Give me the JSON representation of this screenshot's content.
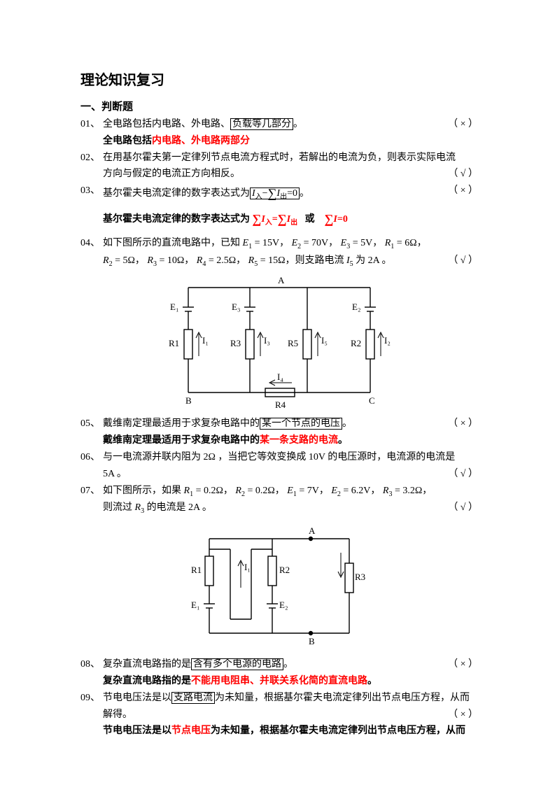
{
  "title": "理论知识复习",
  "section": "一、判断题",
  "colors": {
    "text": "#000000",
    "highlight": "#ff0000",
    "bg": "#ffffff"
  },
  "q01": {
    "num": "01、",
    "pre": "全电路包括内电路、外电路、",
    "box": "负载等几部分",
    "post": "。",
    "ans": "（ × ）",
    "corr_pre": "全电路包括",
    "corr_hi": "内电路、外电路两部分"
  },
  "q02": {
    "num": "02、",
    "l1": "在用基尔霍夫第一定律列节点电流方程式时，若解出的电流为负，则表示实际电流",
    "l2": "方向与假定的电流正方向相反。",
    "ans": "（ √ ）"
  },
  "q03": {
    "num": "03、",
    "pre": "基尔霍夫电流定律的数字表达式为",
    "box_html": "<span class='it'>I</span><span class='sub'>入</span>−<span class='sigma'>∑</span><span class='it'>I</span><span class='sub'>出</span>=0",
    "post": "。",
    "ans": "（ × ）",
    "ft": "基尔霍夫电流定律的数字表达式为",
    "fa": "<span class='sigma red'>∑</span><span class='it red'>I</span><span class='sub red'>入</span><span class='red'>=</span><span class='sigma red'>∑</span><span class='it red'>I</span><span class='sub red'>出</span>",
    "or": "或",
    "fb": "<span class='sigma red'>∑</span><span class='it red'>I</span><span class='red'>=0</span>"
  },
  "q04": {
    "num": "04、",
    "l1": "如下图所示的直流电路中，已知 <span class='it'>E</span><span class='sub'>1</span> = 15V， <span class='it'>E</span><span class='sub'>2</span> = 70V， <span class='it'>E</span><span class='sub'>3</span> = 5V， <span class='it'>R</span><span class='sub'>1</span> = 6Ω，",
    "l2": "<span class='it'>R</span><span class='sub'>2</span> = 5Ω， <span class='it'>R</span><span class='sub'>3</span> = 10Ω， <span class='it'>R</span><span class='sub'>4</span> = 2.5Ω， <span class='it'>R</span><span class='sub'>5</span> = 15Ω，则支路电流 <span class='it'>I</span><span class='sub'>5</span> 为 2A 。",
    "ans": "（ √ ）"
  },
  "q05": {
    "num": "05、",
    "pre": "戴维南定理最适用于求复杂电路中的",
    "box": "某一个节点的电压",
    "post": "。",
    "ans": "（ × ）",
    "corr_pre": "戴维南定理最适用于求复杂电路中的",
    "corr_hi": "某一条支路的电流",
    "corr_post": "。"
  },
  "q06": {
    "num": "06、",
    "l1": "与一电流源并联内阻为 2Ω ，当把它等效变换成 10V 的电压源时，电流源的电流是",
    "l2": "5A 。",
    "ans": "（ √ ）"
  },
  "q07": {
    "num": "07、",
    "l1": "如下图所示，如果 <span class='it'>R</span><span class='sub'>1</span> = 0.2Ω， <span class='it'>R</span><span class='sub'>2</span> = 0.2Ω， <span class='it'>E</span><span class='sub'>1</span> = 7V， <span class='it'>E</span><span class='sub'>2</span> = 6.2V， <span class='it'>R</span><span class='sub'>3</span> = 3.2Ω，",
    "l2": "则流过 <span class='it'>R</span><span class='sub'>3</span> 的电流是 2A 。",
    "ans": "（ √ ）"
  },
  "q08": {
    "num": "08、",
    "pre": "复杂直流电路指的是",
    "box": "含有多个电源的电路",
    "post": "。",
    "ans": "（ × ）",
    "corr_pre": "复杂直流电路指的是",
    "corr_hi": "不能用电阻串、并联关系化简的直流电路",
    "corr_post": "。"
  },
  "q09": {
    "num": "09、",
    "pre": "节电电压法是以",
    "box": "支路电流",
    "post": "为未知量，根据基尔霍夫电流定律列出节点电压方程，从而",
    "l2": "解得。",
    "ans": "（ × ）",
    "corr": "节电电压法是以<span class='red-b'>节点电压</span>为未知量，根据基尔霍夫电流定律列出节点电压方程，从而"
  },
  "circuit1": {
    "labels": {
      "A": "A",
      "B": "B",
      "C": "C",
      "E1": "E₁",
      "E2": "E₂",
      "E3": "E₃",
      "R1": "R1",
      "R2": "R2",
      "R3": "R3",
      "R4": "R4",
      "R5": "R5",
      "I1": "I₁",
      "I2": "I₂",
      "I3": "I₃",
      "I4": "I₄",
      "I5": "I₅"
    },
    "stroke": "#000000"
  },
  "circuit2": {
    "labels": {
      "A": "A",
      "B": "B",
      "R1": "R1",
      "R2": "R2",
      "R3": "R3",
      "E1": "E₁",
      "E2": "E₂",
      "I1": "I₁"
    },
    "stroke": "#000000"
  }
}
